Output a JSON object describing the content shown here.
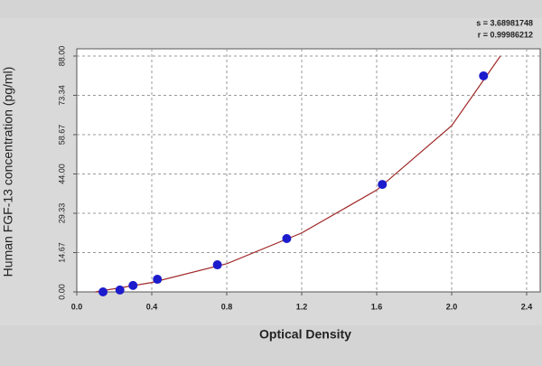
{
  "chart_data": {
    "type": "scatter",
    "x_label": "Optical Density",
    "y_label": "Human FGF-13 concentration (pg/ml)",
    "annotations": [
      "s = 3.68981748",
      "r = 0.99986212"
    ],
    "points": {
      "color": "#1c1ccc",
      "x": [
        0.14,
        0.23,
        0.3,
        0.43,
        0.75,
        1.12,
        1.63,
        2.17
      ],
      "values": [
        0,
        0.7,
        2.4,
        4.7,
        10.1,
        19.9,
        40.1,
        80.6
      ]
    },
    "fit": {
      "color": "#a02828",
      "x": [
        0.1,
        0.4,
        0.8,
        1.2,
        1.6,
        2.0,
        2.26
      ],
      "values": [
        0,
        3.5,
        10.5,
        22,
        38,
        62,
        88
      ]
    },
    "xlim": [
      0,
      2.4
    ],
    "xticks": [
      {
        "value": 0,
        "label": "0.0"
      },
      0.4,
      0.8,
      1.2,
      1.6,
      {
        "value": 2,
        "label": "2.0"
      },
      2.4
    ],
    "ylim": [
      0,
      88
    ],
    "yticks": [
      {
        "value": 0,
        "label": "0.00"
      },
      {
        "value": 14.67,
        "label": "14.67"
      },
      {
        "value": 29.33,
        "label": "29.33"
      },
      {
        "value": 44,
        "label": "44.00"
      },
      {
        "value": 58.67,
        "label": "58.67"
      },
      {
        "value": 73.34,
        "label": "73.34"
      },
      {
        "value": 88,
        "label": "88.00"
      }
    ],
    "grid": true
  }
}
